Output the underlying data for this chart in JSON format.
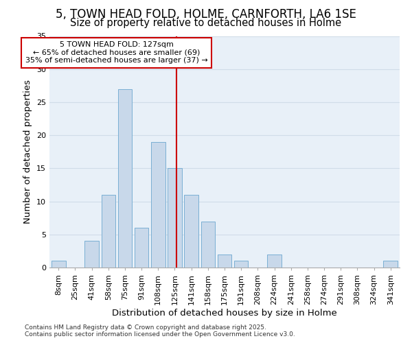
{
  "title1": "5, TOWN HEAD FOLD, HOLME, CARNFORTH, LA6 1SE",
  "title2": "Size of property relative to detached houses in Holme",
  "xlabel": "Distribution of detached houses by size in Holme",
  "ylabel": "Number of detached properties",
  "categories": [
    "8sqm",
    "25sqm",
    "41sqm",
    "58sqm",
    "75sqm",
    "91sqm",
    "108sqm",
    "125sqm",
    "141sqm",
    "158sqm",
    "175sqm",
    "191sqm",
    "208sqm",
    "224sqm",
    "241sqm",
    "258sqm",
    "274sqm",
    "291sqm",
    "308sqm",
    "324sqm",
    "341sqm"
  ],
  "values": [
    1,
    0,
    4,
    11,
    27,
    6,
    19,
    15,
    11,
    7,
    2,
    1,
    0,
    2,
    0,
    0,
    0,
    0,
    0,
    0,
    1
  ],
  "bar_color": "#c8d8ea",
  "bar_edge_color": "#7aafd4",
  "vline_x": 7.12,
  "vline_color": "#cc0000",
  "annotation_text": "5 TOWN HEAD FOLD: 127sqm\n← 65% of detached houses are smaller (69)\n35% of semi-detached houses are larger (37) →",
  "ylim": [
    0,
    35
  ],
  "yticks": [
    0,
    5,
    10,
    15,
    20,
    25,
    30,
    35
  ],
  "grid_color": "#d0dce8",
  "bg_color": "#e8f0f8",
  "footer": "Contains HM Land Registry data © Crown copyright and database right 2025.\nContains public sector information licensed under the Open Government Licence v3.0.",
  "title1_fontsize": 12,
  "title2_fontsize": 10.5,
  "axis_label_fontsize": 9.5,
  "tick_fontsize": 8,
  "annotation_fontsize": 8,
  "footer_fontsize": 6.5
}
